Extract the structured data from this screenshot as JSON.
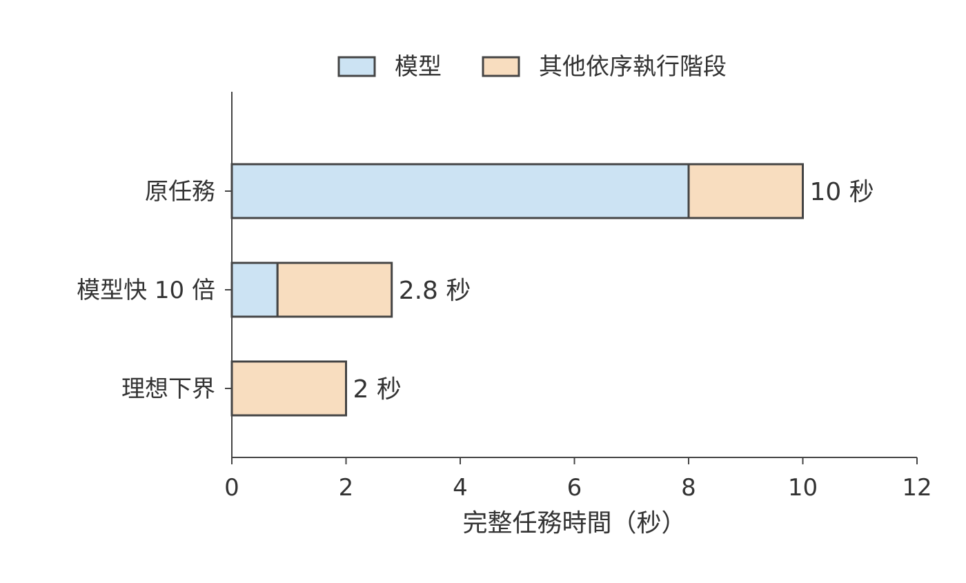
{
  "chart_data": {
    "type": "bar",
    "orientation": "horizontal",
    "stacked": true,
    "categories": [
      "原任務",
      "模型快 10 倍",
      "理想下界"
    ],
    "series": [
      {
        "name": "模型",
        "values": [
          8,
          0.8,
          0
        ],
        "color": "#cce3f3"
      },
      {
        "name": "其他依序執行階段",
        "values": [
          2,
          2,
          2
        ],
        "color": "#f8ddbf"
      }
    ],
    "data_labels": [
      "10 秒",
      "2.8 秒",
      "2 秒"
    ],
    "xlabel": "完整任務時間（秒）",
    "ylabel": "",
    "xlim": [
      0,
      12
    ],
    "xticks": [
      0,
      2,
      4,
      6,
      8,
      10,
      12
    ],
    "xtick_labels": [
      "0",
      "2",
      "4",
      "6",
      "8",
      "10",
      "12"
    ],
    "grid": false,
    "legend_position": "top-center",
    "edge_color": "#444444"
  }
}
